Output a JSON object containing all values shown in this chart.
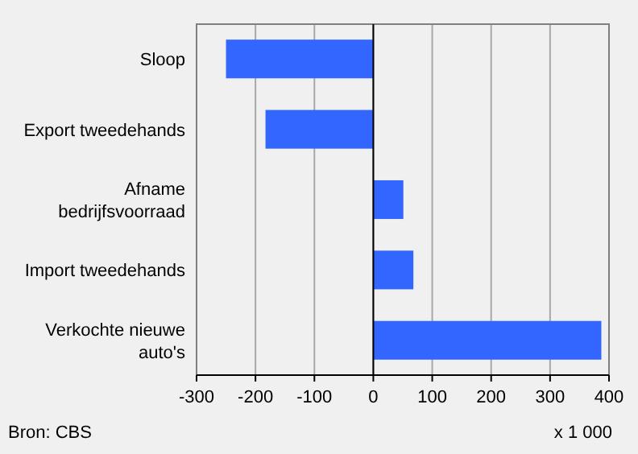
{
  "chart_data": {
    "type": "bar",
    "orientation": "horizontal",
    "categories": [
      "Sloop",
      "Export tweedehands",
      "Afname bedrijfsvoorraad",
      "Import tweedehands",
      "Verkochte nieuwe auto's"
    ],
    "values": [
      -250,
      -183,
      51,
      68,
      387
    ],
    "color": "#3366ff",
    "xlim": [
      -300,
      400
    ],
    "xticks": [
      -300,
      -200,
      -100,
      0,
      100,
      200,
      300,
      400
    ],
    "grid": "x",
    "annotations": [
      "Bron: CBS",
      "x 1 000"
    ]
  }
}
